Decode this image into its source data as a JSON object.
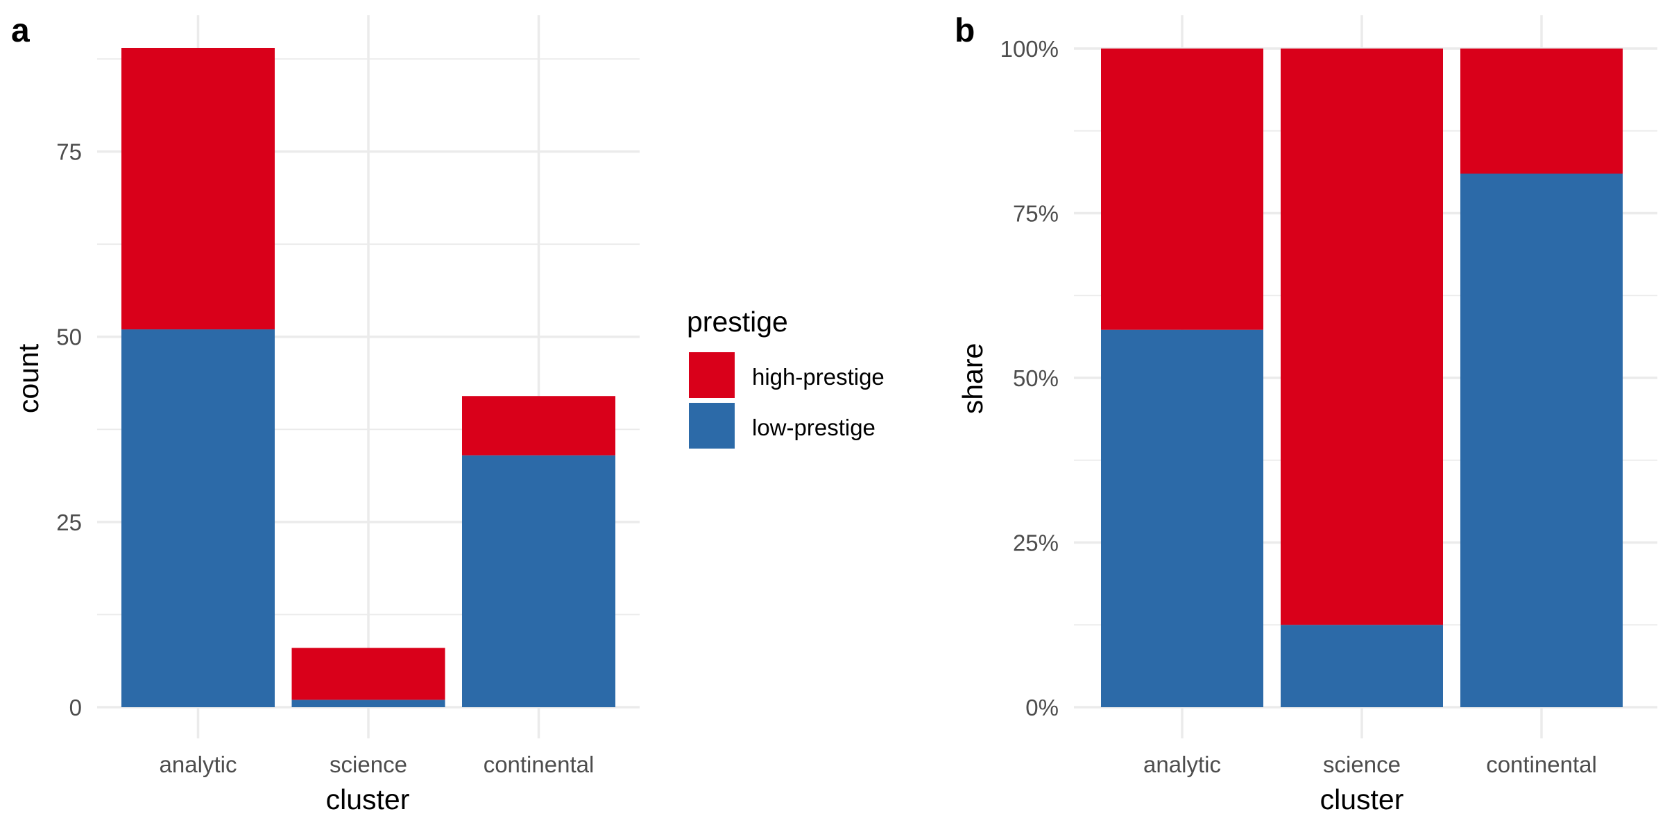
{
  "colors": {
    "low-prestige": "#2c6aa8",
    "high-prestige": "#d9001a"
  },
  "legend": {
    "title": "prestige",
    "entries": [
      {
        "key": "high-prestige",
        "label": "high-prestige"
      },
      {
        "key": "low-prestige",
        "label": "low-prestige"
      }
    ]
  },
  "chart_data": [
    {
      "type": "bar",
      "panel_tag": "a",
      "stacking": "stacked",
      "categories": [
        "analytic",
        "science",
        "continental"
      ],
      "series": [
        {
          "name": "low-prestige",
          "values": [
            51,
            1,
            34
          ]
        },
        {
          "name": "high-prestige",
          "values": [
            38,
            7,
            8
          ]
        }
      ],
      "xlabel": "cluster",
      "ylabel": "count",
      "ylim": [
        0,
        89
      ],
      "yticks": [
        0,
        25,
        50,
        75
      ],
      "ytick_labels": [
        "0",
        "25",
        "50",
        "75"
      ],
      "yminor": [
        12.5,
        37.5,
        62.5,
        87.5
      ],
      "grid": true,
      "legend_position": "right"
    },
    {
      "type": "bar",
      "panel_tag": "b",
      "stacking": "fill",
      "categories": [
        "analytic",
        "science",
        "continental"
      ],
      "series": [
        {
          "name": "low-prestige",
          "values": [
            0.573,
            0.125,
            0.81
          ]
        },
        {
          "name": "high-prestige",
          "values": [
            0.427,
            0.875,
            0.19
          ]
        }
      ],
      "xlabel": "cluster",
      "ylabel": "share",
      "ylim": [
        0,
        1
      ],
      "yticks": [
        0,
        0.25,
        0.5,
        0.75,
        1
      ],
      "ytick_labels": [
        "0%",
        "25%",
        "50%",
        "75%",
        "100%"
      ],
      "yminor": [
        0.125,
        0.375,
        0.625,
        0.875
      ],
      "grid": true
    }
  ]
}
